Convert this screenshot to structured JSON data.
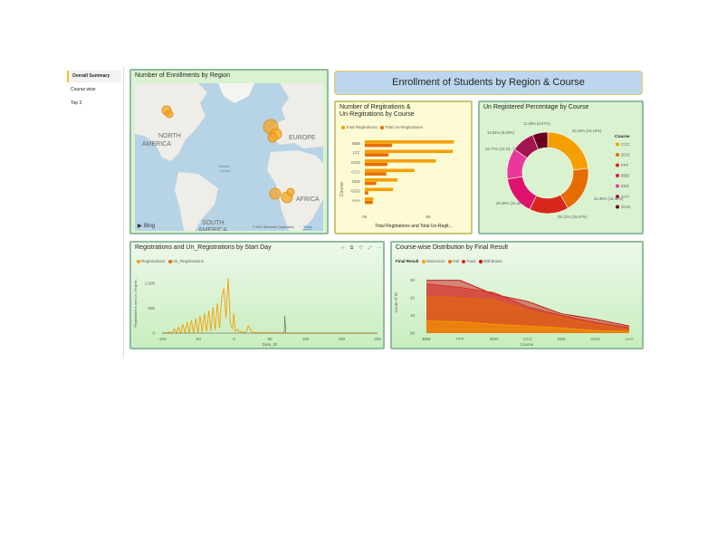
{
  "nav": {
    "items": [
      "Overall Summary",
      "Course wise",
      "Top 3"
    ],
    "active": 0
  },
  "banner": {
    "title": "Enrollment of Students by Region & Course"
  },
  "map": {
    "title": "Number of Enrollments by Region",
    "labels": [
      "NORTH\nAMERICA",
      "EUROPE",
      "Atlantic\nOcean",
      "AFRICA",
      "SOUTH\nAMERICA"
    ],
    "bing": "Bing",
    "copyright": "© 2021 Microsoft Corporation",
    "terms": "Terms"
  },
  "regs_chart": {
    "title_line1": "Number of Regitrations &",
    "title_line2": "Un-Regitrations by Course",
    "legend": [
      "Total Regitrations",
      "Total Un-Regitrations"
    ],
    "ylabel": "Course",
    "xlabel": "Total Regitrations and Total Un-Regit...",
    "ticks": [
      "0K",
      "5K"
    ]
  },
  "donut": {
    "title": "Un Registered Percentage by Course",
    "legend_title": "Course",
    "legend": [
      "CCC",
      "DDD",
      "FFF",
      "BBB",
      "EEE",
      "AAA",
      "GGG"
    ],
    "labels": [
      "43.18% (23.19%)",
      "34.36% (18.45%)",
      "29.13% (15.67%)",
      "28.48% (15.29%)",
      "22.77% (12.23...)",
      "16.84% (9.06%)",
      "11.29% (6.07%)"
    ]
  },
  "line_chart": {
    "title": "Registrations and Un_Registrations by Start Day",
    "legend": [
      "Registrations",
      "Un_Registrations"
    ],
    "ylabel": "Registrations and Un_Registr...",
    "xlabel": "Date_ID",
    "xticks": [
      "-100",
      "-50",
      "0",
      "50",
      "100",
      "150",
      "200"
    ],
    "yticks": [
      "0",
      "500",
      "1,000"
    ]
  },
  "area_chart": {
    "title": "Course-wise Distribution by Final Result",
    "legend_title": "Final Result",
    "legend": [
      "Distinction",
      "Fail",
      "Pass",
      "Withdrawn"
    ],
    "ylabel": "Count of ID",
    "xlabel": "Course",
    "xticks": [
      "BBB",
      "FFF",
      "DDD",
      "CCC",
      "EEE",
      "GGG",
      "AAA"
    ],
    "yticks": [
      "0K",
      "1K",
      "2K",
      "3K"
    ]
  },
  "colors": {
    "accent_orange": "#f59f00",
    "dark_orange": "#e66c00",
    "red": "#d7271d",
    "crimson": "#c00000",
    "magenta": "#e0116d",
    "purple": "#a3144f",
    "maroon": "#6b0020",
    "panel_green": "#d9f2d0",
    "panel_yellow": "#fdfbd3",
    "banner_blue": "#bcd6ee"
  },
  "chart_data": [
    {
      "type": "bar",
      "title": "Number of Regitrations & Un-Regitrations by Course",
      "xlabel": "Total Regitrations and Total Un-Regit...",
      "ylabel": "Course",
      "categories": [
        "BBB",
        "FFF",
        "DDD",
        "CCC",
        "EEE",
        "GGG",
        "AAA"
      ],
      "series": [
        {
          "name": "Total Regitrations",
          "values": [
            7900,
            7800,
            6300,
            4400,
            2900,
            2500,
            750
          ]
        },
        {
          "name": "Total Un-Regitrations",
          "values": [
            2400,
            2100,
            2000,
            1900,
            1000,
            300,
            700
          ]
        }
      ],
      "xlim": [
        0,
        9000
      ]
    },
    {
      "type": "pie",
      "title": "Un Registered Percentage by Course",
      "categories": [
        "CCC",
        "DDD",
        "FFF",
        "BBB",
        "EEE",
        "AAA",
        "GGG"
      ],
      "values": [
        23.19,
        18.45,
        15.67,
        15.29,
        12.23,
        9.06,
        6.07
      ]
    },
    {
      "type": "line",
      "title": "Registrations and Un_Registrations by Start Day",
      "xlabel": "Date_ID",
      "ylabel": "Registrations and Un_Registr...",
      "xlim": [
        -100,
        200
      ],
      "ylim": [
        0,
        1200
      ],
      "series": [
        {
          "name": "Registrations",
          "x": [
            -100,
            -95,
            -90,
            -86,
            -83,
            -80,
            -77,
            -74,
            -71,
            -68,
            -65,
            -62,
            -59,
            -56,
            -53,
            -50,
            -47,
            -44,
            -41,
            -38,
            -35,
            -32,
            -29,
            -26,
            -23,
            -20,
            -17,
            -14,
            -11,
            -8,
            -5,
            -2,
            0,
            2,
            5,
            8,
            11,
            14,
            17,
            20,
            25,
            30,
            40,
            60,
            70,
            100,
            130,
            150,
            200
          ],
          "y": [
            0,
            0,
            20,
            0,
            80,
            0,
            120,
            0,
            180,
            0,
            220,
            0,
            260,
            0,
            300,
            0,
            350,
            20,
            400,
            30,
            450,
            40,
            520,
            60,
            600,
            100,
            700,
            900,
            300,
            1100,
            200,
            80,
            400,
            30,
            80,
            20,
            40,
            10,
            20,
            150,
            20,
            10,
            5,
            5,
            0,
            0,
            0,
            0,
            0
          ]
        },
        {
          "name": "Un_Registrations",
          "x": [
            -100,
            -50,
            0,
            50,
            70,
            71,
            72,
            100,
            150,
            200
          ],
          "y": [
            0,
            0,
            0,
            0,
            0,
            350,
            0,
            0,
            0,
            0
          ]
        }
      ]
    },
    {
      "type": "area",
      "title": "Course-wise Distribution by Final Result",
      "xlabel": "Course",
      "ylabel": "Count of ID",
      "categories": [
        "BBB",
        "FFF",
        "DDD",
        "CCC",
        "EEE",
        "GGG",
        "AAA"
      ],
      "ylim": [
        0,
        3500
      ],
      "series": [
        {
          "name": "Withdrawn",
          "values": [
            3000,
            3000,
            2200,
            1800,
            1100,
            800,
            400
          ]
        },
        {
          "name": "Pass",
          "values": [
            2800,
            2600,
            2300,
            1500,
            1000,
            600,
            300
          ]
        },
        {
          "name": "Fail",
          "values": [
            2100,
            2000,
            1900,
            1300,
            900,
            500,
            200
          ]
        },
        {
          "name": "Distinction",
          "values": [
            700,
            650,
            500,
            400,
            300,
            150,
            100
          ]
        }
      ]
    }
  ]
}
